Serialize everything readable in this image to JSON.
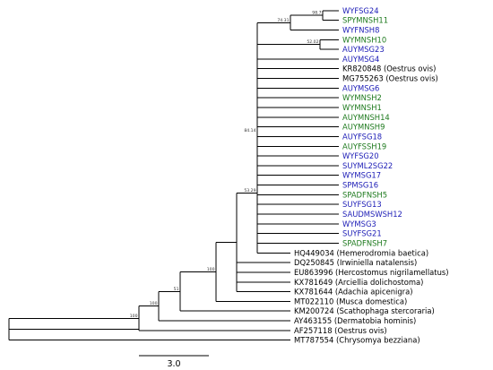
{
  "colors": {
    "blue": "#1c1cb6",
    "green": "#1e7a1e",
    "black": "#000000"
  },
  "tips": [
    {
      "label": "WYFSG24",
      "color": "blue"
    },
    {
      "label": "SPYMNSH11",
      "color": "green"
    },
    {
      "label": "WYFNSH8",
      "color": "blue"
    },
    {
      "label": "WYMNSH10",
      "color": "green"
    },
    {
      "label": "AUYMSG23",
      "color": "blue"
    },
    {
      "label": "AUYMSG4",
      "color": "blue"
    },
    {
      "label": "KR820848 (Oestrus ovis)",
      "color": "black"
    },
    {
      "label": "MG755263 (Oestrus ovis)",
      "color": "black"
    },
    {
      "label": "AUYMSG6",
      "color": "blue"
    },
    {
      "label": "WYMNSH2",
      "color": "green"
    },
    {
      "label": "WYMNSH1",
      "color": "green"
    },
    {
      "label": "AUYMNSH14",
      "color": "green"
    },
    {
      "label": "AUYMNSH9",
      "color": "green"
    },
    {
      "label": "AUYFSG18",
      "color": "blue"
    },
    {
      "label": "AUYFSSH19",
      "color": "green"
    },
    {
      "label": "WYFSG20",
      "color": "blue"
    },
    {
      "label": "SUYML2SG22",
      "color": "blue"
    },
    {
      "label": "WYMSG17",
      "color": "blue"
    },
    {
      "label": "SPMSG16",
      "color": "blue"
    },
    {
      "label": "SPADFNSH5",
      "color": "green"
    },
    {
      "label": "SUYFSG13",
      "color": "blue"
    },
    {
      "label": "SAUDMSWSH12",
      "color": "blue"
    },
    {
      "label": "WYMSG3",
      "color": "blue"
    },
    {
      "label": "SUYFSG21",
      "color": "blue"
    },
    {
      "label": "SPADFNSH7",
      "color": "green"
    },
    {
      "label": "HQ449034 (Hemerodromia baetica)",
      "color": "black"
    },
    {
      "label": "DQ250845 (Irwiniella natalensis)",
      "color": "black"
    },
    {
      "label": "EU863996 (Hercostomus nigrilamellatus)",
      "color": "black"
    },
    {
      "label": "KX781649 (Arciellia dolichostoma)",
      "color": "black"
    },
    {
      "label": "KX781644 (Adachia apicenigra)",
      "color": "black"
    },
    {
      "label": "MT022110 (Musca domestica)",
      "color": "black"
    },
    {
      "label": "KM200724 (Scathophaga stercoraria)",
      "color": "black"
    },
    {
      "label": "AY463155 (Dermatobia hominis)",
      "color": "black"
    },
    {
      "label": "AF257118 (Oestrus ovis)",
      "color": "black"
    },
    {
      "label": "MT787554 (Chrysomya bezziana)",
      "color": "black"
    }
  ],
  "support_values": {
    "n_24_11": "98.7",
    "n_top3": "74.31",
    "n_10_23": "52.02",
    "n_crown": "84.14",
    "n_ingroup": "53.29",
    "n_musca": "100",
    "n_scatho": "51",
    "n_derma": "100",
    "n_oestrus": "100"
  },
  "scale_bar": {
    "label": "3.0"
  }
}
